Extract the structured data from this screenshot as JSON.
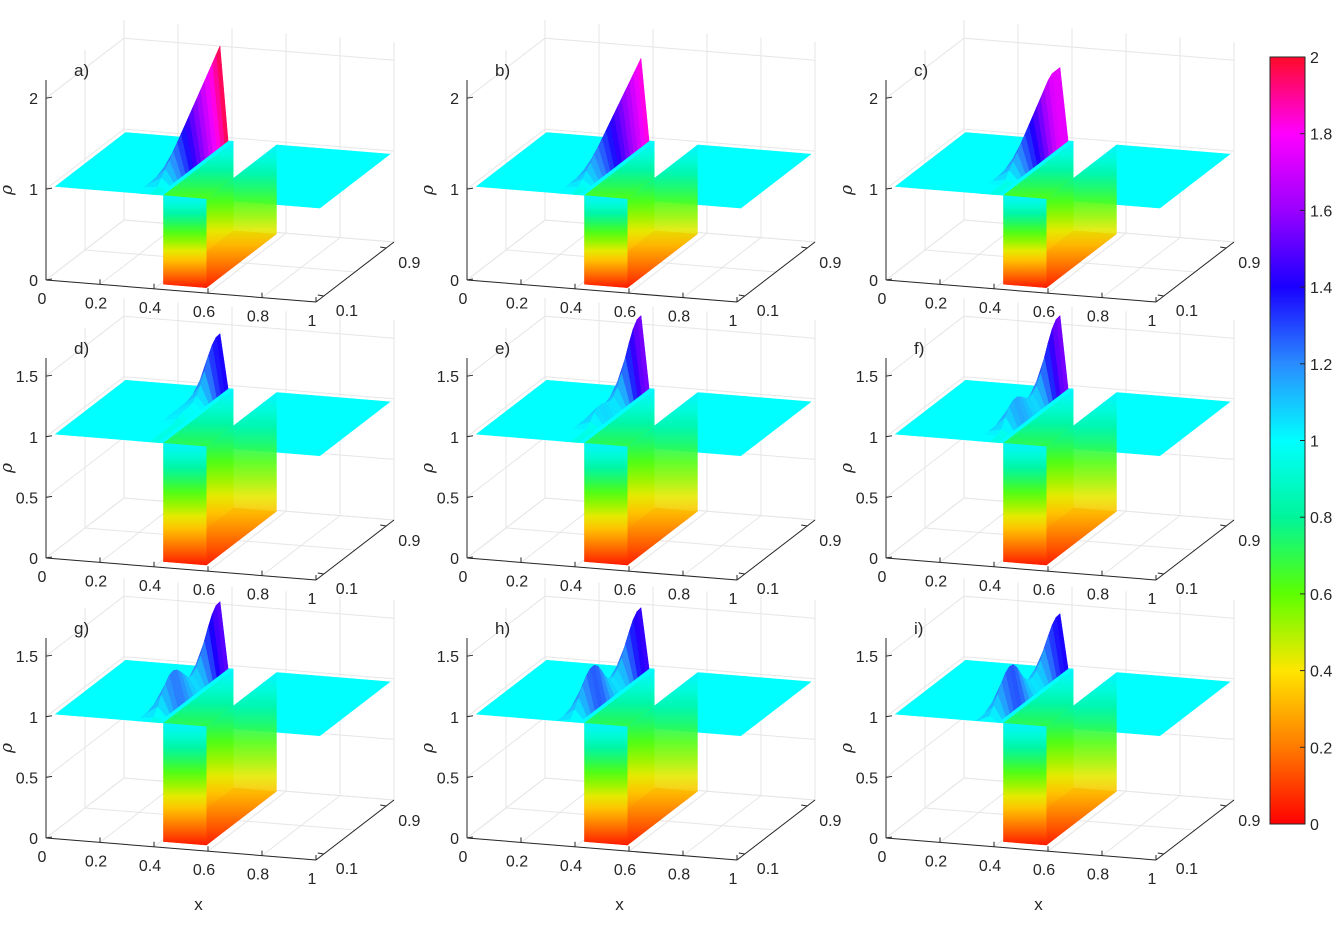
{
  "chart_data": {
    "type": "surface",
    "panels": [
      {
        "id": "a",
        "label": "a)",
        "zticks": [
          0,
          1,
          2
        ],
        "zmax": 2.2,
        "peak": 2.15,
        "peakPos": 0.15,
        "shape": "single"
      },
      {
        "id": "b",
        "label": "b)",
        "zticks": [
          0,
          1,
          2
        ],
        "zmax": 2.2,
        "peak": 2.0,
        "peakPos": 0.25,
        "shape": "single"
      },
      {
        "id": "c",
        "label": "c)",
        "zticks": [
          0,
          1,
          2
        ],
        "zmax": 2.2,
        "peak": 1.8,
        "peakPos": 0.38,
        "shape": "plateau"
      },
      {
        "id": "d",
        "label": "d)",
        "zticks": [
          0,
          0.5,
          1,
          1.5
        ],
        "zmax": 1.65,
        "peak": 1.45,
        "peakPos": 0.5,
        "shape": "double"
      },
      {
        "id": "e",
        "label": "e)",
        "zticks": [
          0,
          0.5,
          1,
          1.5
        ],
        "zmax": 1.65,
        "peak": 1.6,
        "peakPos": 0.62,
        "shape": "split"
      },
      {
        "id": "f",
        "label": "f)",
        "zticks": [
          0,
          0.5,
          1,
          1.5
        ],
        "zmax": 1.65,
        "peak": 1.6,
        "peakPos": 0.72,
        "shape": "ramp"
      },
      {
        "id": "g",
        "label": "g)",
        "zticks": [
          0,
          0.5,
          1,
          1.5
        ],
        "zmax": 1.65,
        "peak": 1.55,
        "peakPos": 0.82,
        "shape": "ramp2"
      },
      {
        "id": "h",
        "label": "h)",
        "zticks": [
          0,
          0.5,
          1,
          1.5
        ],
        "zmax": 1.65,
        "peak": 1.5,
        "peakPos": 0.9,
        "shape": "ramp3"
      },
      {
        "id": "i",
        "label": "i)",
        "zticks": [
          0,
          0.5,
          1,
          1.5
        ],
        "zmax": 1.65,
        "peak": 1.45,
        "peakPos": 0.95,
        "shape": "ramp4"
      }
    ],
    "xticks": [
      "0",
      "0.2",
      "0.4",
      "0.6",
      "0.8",
      "1"
    ],
    "yticks": [
      "0.1",
      "0.9"
    ],
    "xlabel": "x",
    "zlabel": "ρ",
    "hole": {
      "x0": 0.42,
      "x1": 0.58,
      "depth": 0.0
    },
    "base_level": 1,
    "colorbar": {
      "min": 0,
      "max": 2,
      "ticks": [
        "0",
        "0.2",
        "0.4",
        "0.6",
        "0.8",
        "1",
        "1.2",
        "1.4",
        "1.6",
        "1.8",
        "2"
      ],
      "colormap": [
        "#ff0000",
        "#ff7a00",
        "#ffe600",
        "#5cff00",
        "#00f59a",
        "#00ffff",
        "#2a8cff",
        "#1a00ff",
        "#9a00ff",
        "#ff00ff",
        "#ff0a2a"
      ]
    }
  }
}
